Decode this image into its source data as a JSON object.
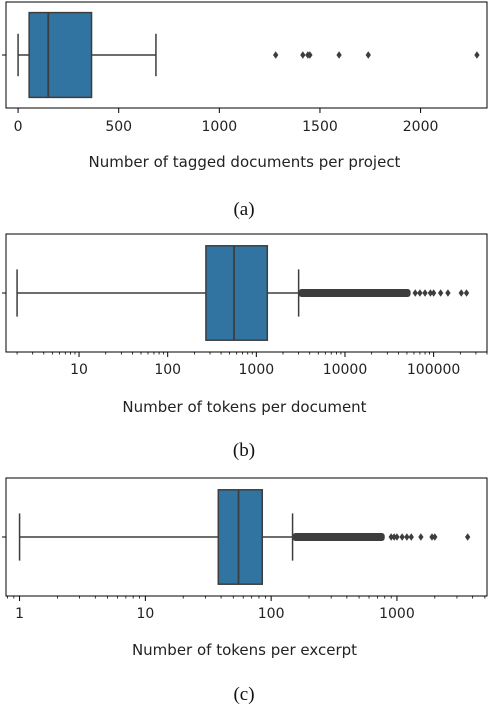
{
  "chart_data": [
    {
      "type": "box",
      "scale": "linear",
      "xlabel": "Number of tagged documents per project",
      "caption": "(a)",
      "xlim": [
        -60,
        2330
      ],
      "ticks": [
        0,
        500,
        1000,
        1500,
        2000
      ],
      "tick_labels": [
        "0",
        "500",
        "1000",
        "1500",
        "2000"
      ],
      "box": {
        "whislo": 0,
        "q1": 55,
        "median": 150,
        "q3": 365,
        "whishi": 685
      },
      "outliers": [
        1280,
        1415,
        1440,
        1450,
        1595,
        1740,
        2280
      ]
    },
    {
      "type": "box",
      "scale": "log",
      "xlabel": "Number of tokens per document",
      "caption": "(b)",
      "xlim": [
        1.5,
        400000
      ],
      "ticks": [
        10,
        100,
        1000,
        10000,
        100000
      ],
      "tick_labels": [
        "10",
        "100",
        "1000",
        "10000",
        "100000"
      ],
      "box": {
        "whislo": 2,
        "q1": 270,
        "median": 560,
        "q3": 1330,
        "whishi": 3000
      },
      "outlier_band": [
        3000,
        55000
      ],
      "outliers": [
        62000,
        70000,
        80000,
        92000,
        100000,
        120000,
        145000,
        205000,
        235000
      ]
    },
    {
      "type": "box",
      "scale": "log",
      "xlabel": "Number of tokens per excerpt",
      "caption": "(c)",
      "xlim": [
        0.78,
        5200
      ],
      "ticks": [
        1,
        10,
        100,
        1000
      ],
      "tick_labels": [
        "1",
        "10",
        "100",
        "1000"
      ],
      "box": {
        "whislo": 1,
        "q1": 38,
        "median": 55,
        "q3": 85,
        "whishi": 148
      },
      "outlier_band": [
        148,
        800
      ],
      "outliers": [
        900,
        950,
        1000,
        1100,
        1200,
        1300,
        1550,
        1900,
        2000,
        3650
      ]
    }
  ],
  "colors": {
    "box_fill": "#3274a1",
    "line": "#3d3d3d",
    "axis": "#000000"
  }
}
